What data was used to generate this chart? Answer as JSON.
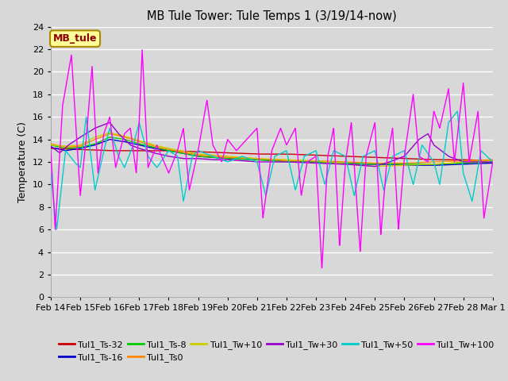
{
  "title": "MB Tule Tower: Tule Temps 1 (3/19/14-now)",
  "ylabel": "Temperature (C)",
  "ylim": [
    0,
    24
  ],
  "xlim": [
    0,
    15
  ],
  "background_color": "#d8d8d8",
  "plot_bg_color": "#d8d8d8",
  "grid_color": "#ffffff",
  "legend_label": "MB_tule",
  "series": [
    {
      "name": "Tul1_Ts-32",
      "color": "#cc0000"
    },
    {
      "name": "Tul1_Ts-16",
      "color": "#0000cc"
    },
    {
      "name": "Tul1_Ts-8",
      "color": "#00cc00"
    },
    {
      "name": "Tul1_Ts0",
      "color": "#ff8800"
    },
    {
      "name": "Tul1_Tw+10",
      "color": "#cccc00"
    },
    {
      "name": "Tul1_Tw+30",
      "color": "#9900cc"
    },
    {
      "name": "Tul1_Tw+50",
      "color": "#00cccc"
    },
    {
      "name": "Tul1_Tw+100",
      "color": "#ff00ff"
    }
  ],
  "xtick_labels": [
    "Feb 14",
    "Feb 15",
    "Feb 16",
    "Feb 17",
    "Feb 18",
    "Feb 19",
    "Feb 20",
    "Feb 21",
    "Feb 22",
    "Feb 23",
    "Feb 24",
    "Feb 25",
    "Feb 26",
    "Feb 27",
    "Feb 28",
    "Mar 1"
  ],
  "xtick_positions": [
    0,
    1,
    2,
    3,
    4,
    5,
    6,
    7,
    8,
    9,
    10,
    11,
    12,
    13,
    14,
    15
  ],
  "legend_row1": [
    "Tul1_Ts-32",
    "Tul1_Ts-16",
    "Tul1_Ts-8",
    "Tul1_Ts0",
    "Tul1_Tw+10",
    "Tul1_Tw+30"
  ],
  "legend_row2": [
    "Tul1_Tw+50",
    "Tul1_Tw+100"
  ]
}
